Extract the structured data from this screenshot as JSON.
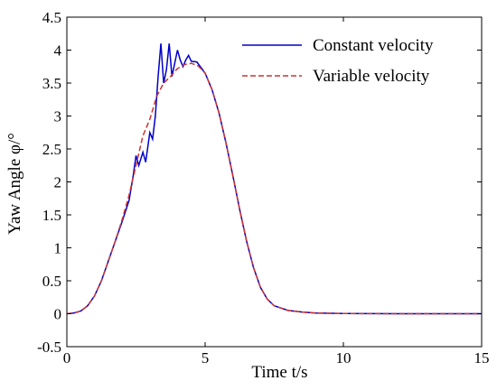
{
  "chart_data": {
    "type": "line",
    "xlabel": "Time t/s",
    "ylabel": "Yaw Angle φ/°",
    "xlim": [
      0,
      15
    ],
    "ylim": [
      -0.5,
      4.5
    ],
    "xticks": [
      0,
      5,
      10,
      15
    ],
    "yticks": [
      -0.5,
      0,
      0.5,
      1,
      1.5,
      2,
      2.5,
      3,
      3.5,
      4,
      4.5
    ],
    "xtick_labels": [
      "0",
      "5",
      "10",
      "15"
    ],
    "ytick_labels": [
      "-0.5",
      "0",
      "0.5",
      "1",
      "1.5",
      "2",
      "2.5",
      "3",
      "3.5",
      "4",
      "4.5"
    ],
    "grid": false,
    "legend_position": "top-right",
    "series": [
      {
        "name": "Constant velocity",
        "color": "#0000cc",
        "style": "solid",
        "points": [
          [
            0,
            0
          ],
          [
            0.25,
            0.01
          ],
          [
            0.5,
            0.04
          ],
          [
            0.75,
            0.12
          ],
          [
            1.0,
            0.27
          ],
          [
            1.25,
            0.5
          ],
          [
            1.5,
            0.8
          ],
          [
            1.75,
            1.1
          ],
          [
            2.0,
            1.4
          ],
          [
            2.25,
            1.72
          ],
          [
            2.4,
            2.1
          ],
          [
            2.5,
            2.4
          ],
          [
            2.6,
            2.25
          ],
          [
            2.75,
            2.45
          ],
          [
            2.85,
            2.3
          ],
          [
            3.0,
            2.75
          ],
          [
            3.1,
            2.65
          ],
          [
            3.2,
            3.0
          ],
          [
            3.3,
            3.6
          ],
          [
            3.4,
            4.1
          ],
          [
            3.5,
            3.5
          ],
          [
            3.6,
            3.7
          ],
          [
            3.7,
            4.1
          ],
          [
            3.8,
            3.6
          ],
          [
            3.9,
            3.8
          ],
          [
            4.0,
            4.0
          ],
          [
            4.1,
            3.85
          ],
          [
            4.2,
            3.75
          ],
          [
            4.3,
            3.85
          ],
          [
            4.4,
            3.92
          ],
          [
            4.5,
            3.83
          ],
          [
            4.7,
            3.82
          ],
          [
            5.0,
            3.65
          ],
          [
            5.25,
            3.4
          ],
          [
            5.5,
            3.05
          ],
          [
            5.75,
            2.6
          ],
          [
            6.0,
            2.1
          ],
          [
            6.25,
            1.58
          ],
          [
            6.5,
            1.1
          ],
          [
            6.75,
            0.7
          ],
          [
            7.0,
            0.4
          ],
          [
            7.25,
            0.22
          ],
          [
            7.5,
            0.12
          ],
          [
            8.0,
            0.05
          ],
          [
            8.5,
            0.025
          ],
          [
            9.0,
            0.01
          ],
          [
            10.0,
            0.003
          ],
          [
            12.0,
            0.0
          ],
          [
            15.0,
            0.0
          ]
        ]
      },
      {
        "name": "Variable velocity",
        "color": "#cc3333",
        "style": "dashed",
        "points": [
          [
            0,
            0
          ],
          [
            0.25,
            0.01
          ],
          [
            0.5,
            0.04
          ],
          [
            0.75,
            0.12
          ],
          [
            1.0,
            0.27
          ],
          [
            1.25,
            0.5
          ],
          [
            1.5,
            0.8
          ],
          [
            1.75,
            1.1
          ],
          [
            2.0,
            1.43
          ],
          [
            2.25,
            1.8
          ],
          [
            2.5,
            2.25
          ],
          [
            2.75,
            2.7
          ],
          [
            3.0,
            2.95
          ],
          [
            3.25,
            3.3
          ],
          [
            3.5,
            3.5
          ],
          [
            3.75,
            3.6
          ],
          [
            4.0,
            3.72
          ],
          [
            4.25,
            3.78
          ],
          [
            4.5,
            3.8
          ],
          [
            4.75,
            3.76
          ],
          [
            5.0,
            3.65
          ],
          [
            5.25,
            3.4
          ],
          [
            5.5,
            3.05
          ],
          [
            5.75,
            2.6
          ],
          [
            6.0,
            2.1
          ],
          [
            6.25,
            1.58
          ],
          [
            6.5,
            1.1
          ],
          [
            6.75,
            0.7
          ],
          [
            7.0,
            0.4
          ],
          [
            7.25,
            0.22
          ],
          [
            7.5,
            0.12
          ],
          [
            8.0,
            0.05
          ],
          [
            8.5,
            0.025
          ],
          [
            9.0,
            0.01
          ],
          [
            10.0,
            0.003
          ],
          [
            12.0,
            0.0
          ],
          [
            15.0,
            0.0
          ]
        ]
      }
    ]
  }
}
